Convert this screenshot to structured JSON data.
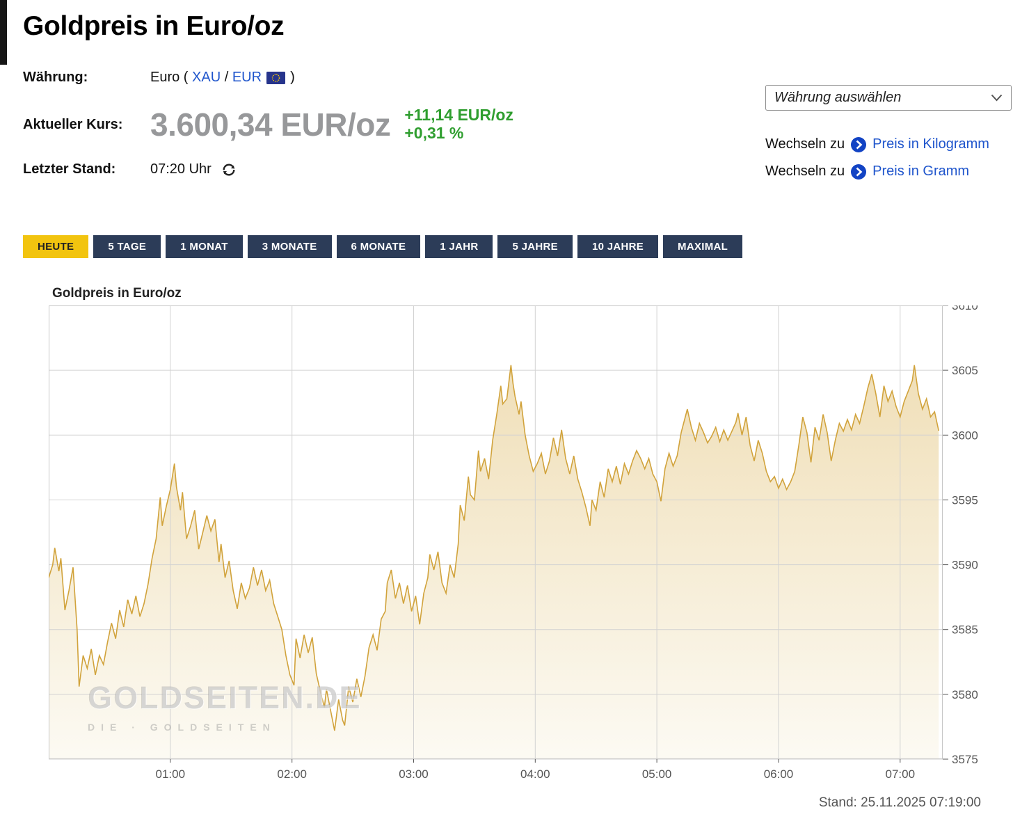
{
  "page": {
    "title": "Goldpreis in Euro/oz"
  },
  "info": {
    "currency_label": "Währung:",
    "currency_prefix": "Euro (",
    "currency_link_xau": "XAU",
    "currency_sep": "/",
    "currency_link_eur": "EUR",
    "currency_suffix": ")",
    "price_label": "Aktueller Kurs:",
    "price_value": "3.600,34 EUR/oz",
    "change_abs": "+11,14 EUR/oz",
    "change_pct": "+0,31 %",
    "last_update_label": "Letzter Stand:",
    "last_update_value": "07:20 Uhr"
  },
  "controls": {
    "currency_select_placeholder": "Währung auswählen",
    "switch_label_kg": "Wechseln zu",
    "switch_link_kg": "Preis in Kilogramm",
    "switch_label_g": "Wechseln zu",
    "switch_link_g": "Preis in Gramm"
  },
  "tabs": [
    {
      "label": "HEUTE",
      "active": true
    },
    {
      "label": "5 TAGE",
      "active": false
    },
    {
      "label": "1 MONAT",
      "active": false
    },
    {
      "label": "3 MONATE",
      "active": false
    },
    {
      "label": "6 MONATE",
      "active": false
    },
    {
      "label": "1 JAHR",
      "active": false
    },
    {
      "label": "5 JAHRE",
      "active": false
    },
    {
      "label": "10 JAHRE",
      "active": false
    },
    {
      "label": "MAXIMAL",
      "active": false
    }
  ],
  "colors": {
    "accent_yellow": "#f2c40f",
    "tab_navy": "#2c3c58",
    "positive_green": "#2f9e2f",
    "link_blue": "#1f55cc",
    "price_gray": "#97989a",
    "chart_line": "#d1a33c"
  },
  "chart_data": {
    "type": "area",
    "title": "Goldpreis in Euro/oz",
    "stand_label": "Stand: 25.11.2025 07:19:00",
    "watermark_line1": "GOLDSEITEN.DE",
    "watermark_line2": "DIE · GOLDSEITEN",
    "x_ticks": [
      "01:00",
      "02:00",
      "03:00",
      "04:00",
      "05:00",
      "06:00",
      "07:00"
    ],
    "x_tick_minutes": [
      60,
      120,
      180,
      240,
      300,
      360,
      420
    ],
    "x_domain_minutes": [
      0,
      441
    ],
    "y_ticks": [
      3575,
      3580,
      3585,
      3590,
      3595,
      3600,
      3605,
      3610
    ],
    "y_domain": [
      3575,
      3610
    ],
    "grid": true,
    "legend": "none",
    "line_color": "#d1a33c",
    "area_top_color": "#f0dfb8",
    "area_bottom_color": "#fcfaf3",
    "series": [
      {
        "name": "Goldpreis in Euro/oz",
        "points": [
          [
            0,
            3589
          ],
          [
            2,
            3590
          ],
          [
            3,
            3591.3
          ],
          [
            5,
            3589.5
          ],
          [
            6,
            3590.5
          ],
          [
            8,
            3586.5
          ],
          [
            10,
            3588
          ],
          [
            12,
            3589.8
          ],
          [
            14,
            3585
          ],
          [
            15,
            3580.6
          ],
          [
            17,
            3583
          ],
          [
            19,
            3582
          ],
          [
            21,
            3583.5
          ],
          [
            23,
            3581.5
          ],
          [
            25,
            3583
          ],
          [
            27,
            3582.3
          ],
          [
            29,
            3584
          ],
          [
            31,
            3585.5
          ],
          [
            33,
            3584.3
          ],
          [
            35,
            3586.5
          ],
          [
            37,
            3585.2
          ],
          [
            39,
            3587.3
          ],
          [
            41,
            3586.2
          ],
          [
            43,
            3587.6
          ],
          [
            45,
            3586
          ],
          [
            47,
            3587
          ],
          [
            49,
            3588.5
          ],
          [
            51,
            3590.5
          ],
          [
            53,
            3592
          ],
          [
            55,
            3595.2
          ],
          [
            56,
            3593
          ],
          [
            58,
            3594.5
          ],
          [
            60,
            3595.8
          ],
          [
            62,
            3597.8
          ],
          [
            63,
            3596
          ],
          [
            65,
            3594.2
          ],
          [
            66,
            3595.6
          ],
          [
            68,
            3592
          ],
          [
            70,
            3593
          ],
          [
            72,
            3594.2
          ],
          [
            74,
            3591.2
          ],
          [
            76,
            3592.5
          ],
          [
            78,
            3593.8
          ],
          [
            80,
            3592.6
          ],
          [
            82,
            3593.5
          ],
          [
            84,
            3590.2
          ],
          [
            85,
            3591.6
          ],
          [
            87,
            3589
          ],
          [
            89,
            3590.3
          ],
          [
            91,
            3588
          ],
          [
            93,
            3586.6
          ],
          [
            95,
            3588.6
          ],
          [
            97,
            3587.4
          ],
          [
            99,
            3588.2
          ],
          [
            101,
            3589.8
          ],
          [
            103,
            3588.4
          ],
          [
            105,
            3589.6
          ],
          [
            107,
            3588
          ],
          [
            109,
            3588.8
          ],
          [
            111,
            3587
          ],
          [
            113,
            3586
          ],
          [
            115,
            3585
          ],
          [
            117,
            3583
          ],
          [
            119,
            3581.5
          ],
          [
            121,
            3580.7
          ],
          [
            122,
            3584.3
          ],
          [
            124,
            3582.8
          ],
          [
            126,
            3584.6
          ],
          [
            128,
            3583.2
          ],
          [
            130,
            3584.4
          ],
          [
            132,
            3581.6
          ],
          [
            134,
            3580.2
          ],
          [
            136,
            3579
          ],
          [
            137,
            3580.4
          ],
          [
            139,
            3578.8
          ],
          [
            141,
            3577.2
          ],
          [
            143,
            3579.6
          ],
          [
            145,
            3578
          ],
          [
            146,
            3577.6
          ],
          [
            148,
            3580.6
          ],
          [
            150,
            3579.4
          ],
          [
            152,
            3581.2
          ],
          [
            154,
            3579.8
          ],
          [
            156,
            3581.4
          ],
          [
            158,
            3583.6
          ],
          [
            160,
            3584.6
          ],
          [
            162,
            3583.4
          ],
          [
            164,
            3585.8
          ],
          [
            166,
            3586.4
          ],
          [
            167,
            3588.6
          ],
          [
            169,
            3589.6
          ],
          [
            171,
            3587.4
          ],
          [
            173,
            3588.6
          ],
          [
            175,
            3587
          ],
          [
            177,
            3588.4
          ],
          [
            179,
            3586.4
          ],
          [
            181,
            3587.6
          ],
          [
            183,
            3585.4
          ],
          [
            185,
            3587.8
          ],
          [
            187,
            3589
          ],
          [
            188,
            3590.8
          ],
          [
            190,
            3589.6
          ],
          [
            192,
            3591
          ],
          [
            194,
            3588.6
          ],
          [
            196,
            3587.8
          ],
          [
            198,
            3590
          ],
          [
            200,
            3589
          ],
          [
            202,
            3591.6
          ],
          [
            203,
            3594.6
          ],
          [
            205,
            3593.4
          ],
          [
            207,
            3596.8
          ],
          [
            208,
            3595.4
          ],
          [
            210,
            3595
          ],
          [
            212,
            3598.8
          ],
          [
            213,
            3597.2
          ],
          [
            215,
            3598.2
          ],
          [
            217,
            3596.6
          ],
          [
            219,
            3599.6
          ],
          [
            221,
            3601.6
          ],
          [
            223,
            3603.8
          ],
          [
            224,
            3602.4
          ],
          [
            226,
            3602.8
          ],
          [
            228,
            3605.4
          ],
          [
            229,
            3604
          ],
          [
            230,
            3603
          ],
          [
            232,
            3601.6
          ],
          [
            233,
            3602.6
          ],
          [
            235,
            3600
          ],
          [
            237,
            3598.4
          ],
          [
            239,
            3597.2
          ],
          [
            241,
            3597.8
          ],
          [
            243,
            3598.6
          ],
          [
            245,
            3597
          ],
          [
            247,
            3598
          ],
          [
            249,
            3599.8
          ],
          [
            251,
            3598.4
          ],
          [
            253,
            3600.4
          ],
          [
            255,
            3598.2
          ],
          [
            257,
            3597
          ],
          [
            259,
            3598.4
          ],
          [
            261,
            3596.6
          ],
          [
            263,
            3595.6
          ],
          [
            265,
            3594.4
          ],
          [
            267,
            3593
          ],
          [
            268,
            3595
          ],
          [
            270,
            3594.2
          ],
          [
            272,
            3596.4
          ],
          [
            274,
            3595.2
          ],
          [
            276,
            3597.4
          ],
          [
            278,
            3596.4
          ],
          [
            280,
            3597.6
          ],
          [
            282,
            3596.2
          ],
          [
            284,
            3597.8
          ],
          [
            286,
            3597
          ],
          [
            288,
            3598
          ],
          [
            290,
            3598.8
          ],
          [
            292,
            3598.2
          ],
          [
            294,
            3597.4
          ],
          [
            296,
            3598.2
          ],
          [
            298,
            3597
          ],
          [
            300,
            3596.4
          ],
          [
            302,
            3594.9
          ],
          [
            304,
            3597.4
          ],
          [
            306,
            3598.6
          ],
          [
            308,
            3597.6
          ],
          [
            310,
            3598.4
          ],
          [
            312,
            3600.2
          ],
          [
            315,
            3602
          ],
          [
            317,
            3600.6
          ],
          [
            319,
            3599.6
          ],
          [
            321,
            3600.9
          ],
          [
            323,
            3600.2
          ],
          [
            325,
            3599.4
          ],
          [
            327,
            3599.9
          ],
          [
            329,
            3600.6
          ],
          [
            331,
            3599.5
          ],
          [
            333,
            3600.4
          ],
          [
            335,
            3599.6
          ],
          [
            337,
            3600.3
          ],
          [
            339,
            3601
          ],
          [
            340,
            3601.7
          ],
          [
            342,
            3600
          ],
          [
            344,
            3601.4
          ],
          [
            346,
            3599.2
          ],
          [
            348,
            3598
          ],
          [
            350,
            3599.6
          ],
          [
            352,
            3598.6
          ],
          [
            354,
            3597.2
          ],
          [
            356,
            3596.4
          ],
          [
            358,
            3596.8
          ],
          [
            360,
            3595.9
          ],
          [
            362,
            3596.6
          ],
          [
            364,
            3595.8
          ],
          [
            366,
            3596.4
          ],
          [
            368,
            3597.2
          ],
          [
            370,
            3599.2
          ],
          [
            372,
            3601.4
          ],
          [
            374,
            3600.2
          ],
          [
            376,
            3597.9
          ],
          [
            378,
            3600.6
          ],
          [
            380,
            3599.6
          ],
          [
            382,
            3601.6
          ],
          [
            384,
            3600.2
          ],
          [
            386,
            3598
          ],
          [
            388,
            3599.6
          ],
          [
            390,
            3600.9
          ],
          [
            392,
            3600.3
          ],
          [
            394,
            3601.2
          ],
          [
            396,
            3600.4
          ],
          [
            398,
            3601.6
          ],
          [
            400,
            3600.9
          ],
          [
            402,
            3602.2
          ],
          [
            404,
            3603.6
          ],
          [
            406,
            3604.7
          ],
          [
            408,
            3603.2
          ],
          [
            410,
            3601.4
          ],
          [
            412,
            3603.8
          ],
          [
            414,
            3602.6
          ],
          [
            416,
            3603.4
          ],
          [
            418,
            3602.2
          ],
          [
            420,
            3601.4
          ],
          [
            422,
            3602.6
          ],
          [
            424,
            3603.4
          ],
          [
            426,
            3604.2
          ],
          [
            427,
            3605.4
          ],
          [
            429,
            3603.2
          ],
          [
            431,
            3602
          ],
          [
            433,
            3602.8
          ],
          [
            435,
            3601.4
          ],
          [
            437,
            3601.8
          ],
          [
            439,
            3600.34
          ]
        ]
      }
    ]
  }
}
